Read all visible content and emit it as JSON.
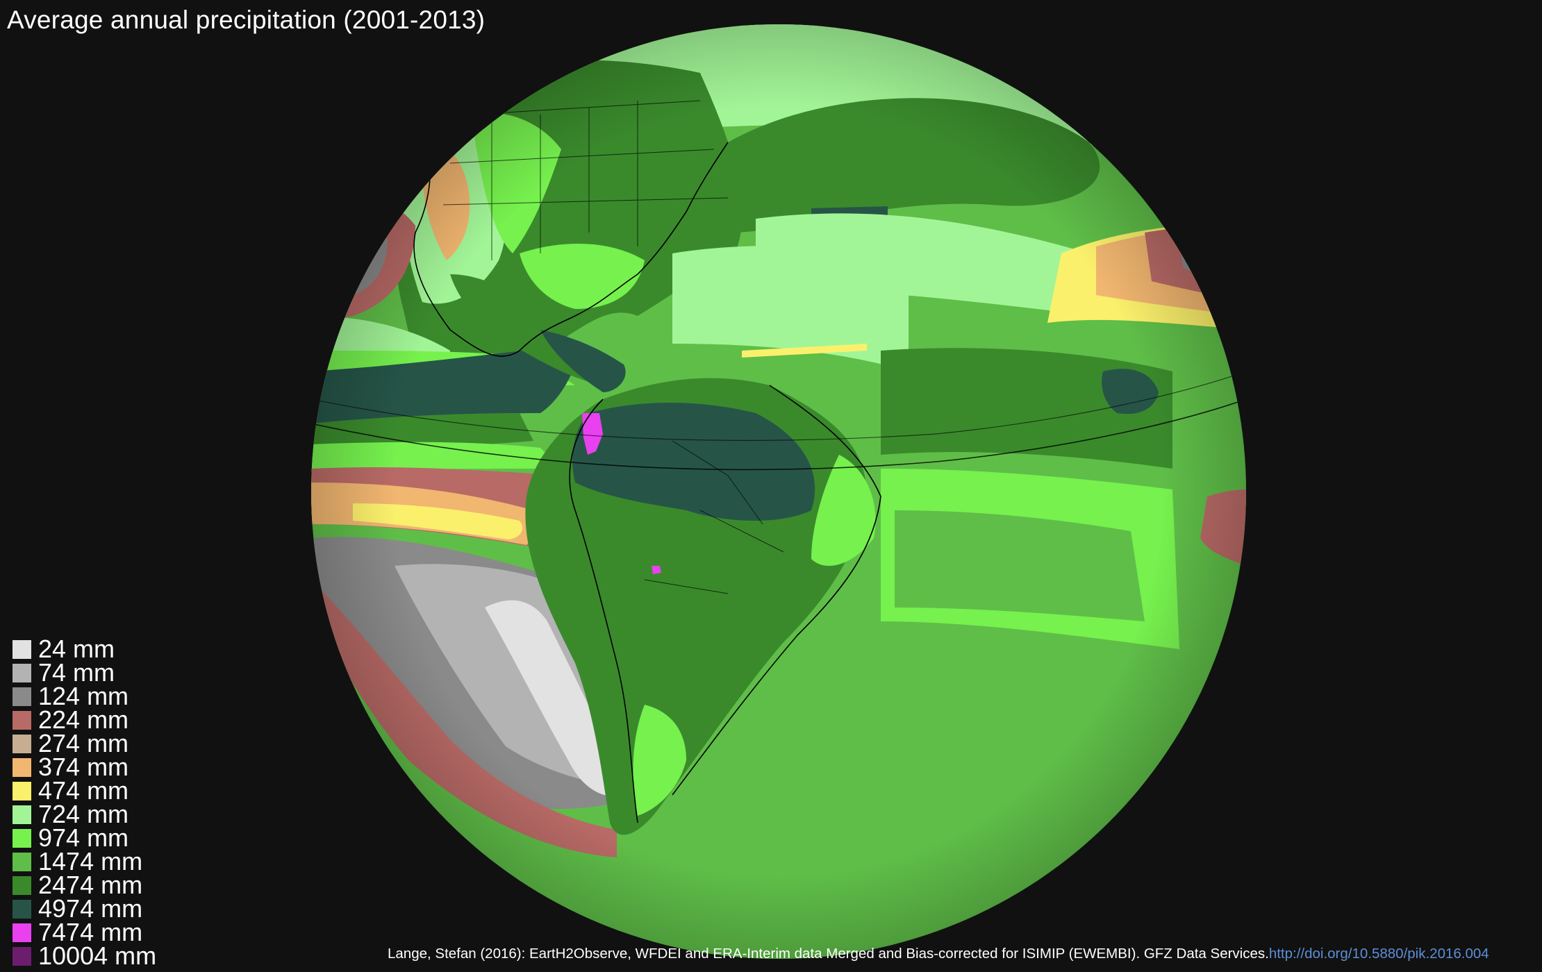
{
  "title": "Average annual precipitation (2001-2013)",
  "legend": [
    {
      "label": "24 mm",
      "color": "#e2e2e2"
    },
    {
      "label": "74 mm",
      "color": "#b3b3b3"
    },
    {
      "label": "124 mm",
      "color": "#8a8a8a"
    },
    {
      "label": "224 mm",
      "color": "#b86a66"
    },
    {
      "label": "274 mm",
      "color": "#c7ae92"
    },
    {
      "label": "374 mm",
      "color": "#f1b670"
    },
    {
      "label": "474 mm",
      "color": "#fbf06c"
    },
    {
      "label": "724 mm",
      "color": "#a2f597"
    },
    {
      "label": "974 mm",
      "color": "#76f14e"
    },
    {
      "label": "1474 mm",
      "color": "#5fbe48"
    },
    {
      "label": "2474 mm",
      "color": "#3a8a2c"
    },
    {
      "label": "4974 mm",
      "color": "#265548"
    },
    {
      "label": "7474 mm",
      "color": "#e941ef"
    },
    {
      "label": "10004 mm",
      "color": "#6c1d6e"
    }
  ],
  "credit": {
    "text": "Lange, Stefan (2016): EartH2Observe, WFDEI and ERA-Interim data Merged and Bias-corrected for ISIMIP (EWEMBI). GFZ Data Services.",
    "link": "http://doi.org/10.5880/pik.2016.004"
  }
}
